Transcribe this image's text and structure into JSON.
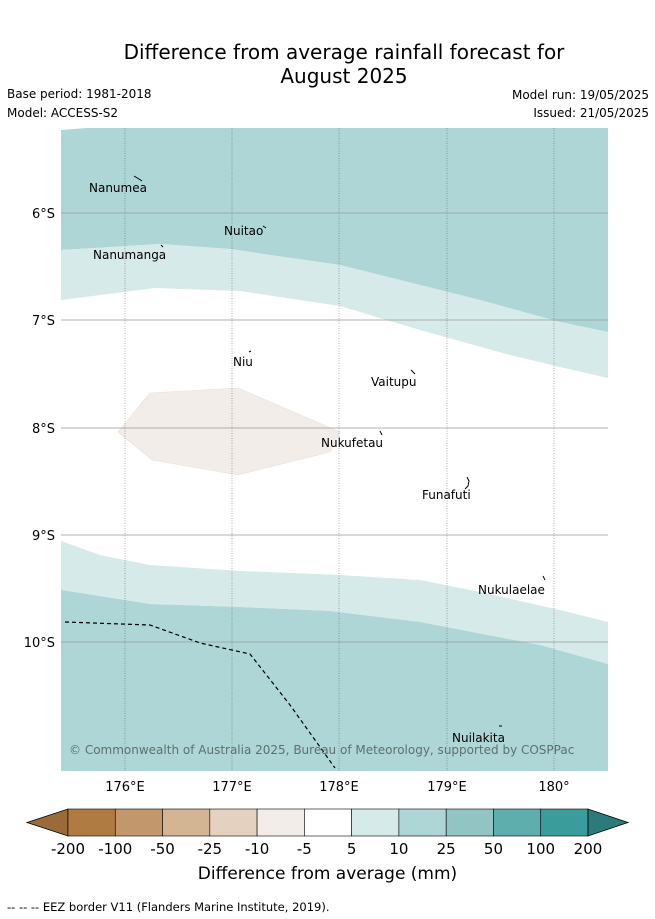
{
  "title_line1": "Difference from average rainfall forecast for",
  "title_line2": "August 2025",
  "base_period": "Base period: 1981-2018",
  "model": "Model: ACCESS-S2",
  "model_run": "Model run: 19/05/2025",
  "issued": "Issued: 21/05/2025",
  "map": {
    "lat_labels": [
      "6°S",
      "7°S",
      "8°S",
      "9°S",
      "10°S"
    ],
    "lon_labels": [
      "176°E",
      "177°E",
      "178°E",
      "179°E",
      "180°"
    ],
    "places": [
      "Nanumea",
      "Nuitao",
      "Nanumanga",
      "Niu",
      "Vaitupu",
      "Nukufetau",
      "Funafuti",
      "Nukulaelae",
      "Nuilakita"
    ],
    "copyright": "© Commonwealth of Australia 2025, Bureau of Meteorology, supported by COSPPac"
  },
  "colorbar": {
    "ticks": [
      "-200",
      "-100",
      "-50",
      "-25",
      "-10",
      "-5",
      "5",
      "10",
      "25",
      "50",
      "100",
      "200"
    ],
    "colors": [
      "#9a6a38",
      "#b07a43",
      "#c3976c",
      "#d4b593",
      "#e5d1bf",
      "#f2ede8",
      "#ffffff",
      "#d6eae9",
      "#aed6d6",
      "#92c4c3",
      "#5eaeae",
      "#3a9d9c",
      "#2c7a79"
    ],
    "label": "Difference from average (mm)"
  },
  "footer": "-- -- -- EEZ border V11 (Flanders Marine Institute, 2019)."
}
